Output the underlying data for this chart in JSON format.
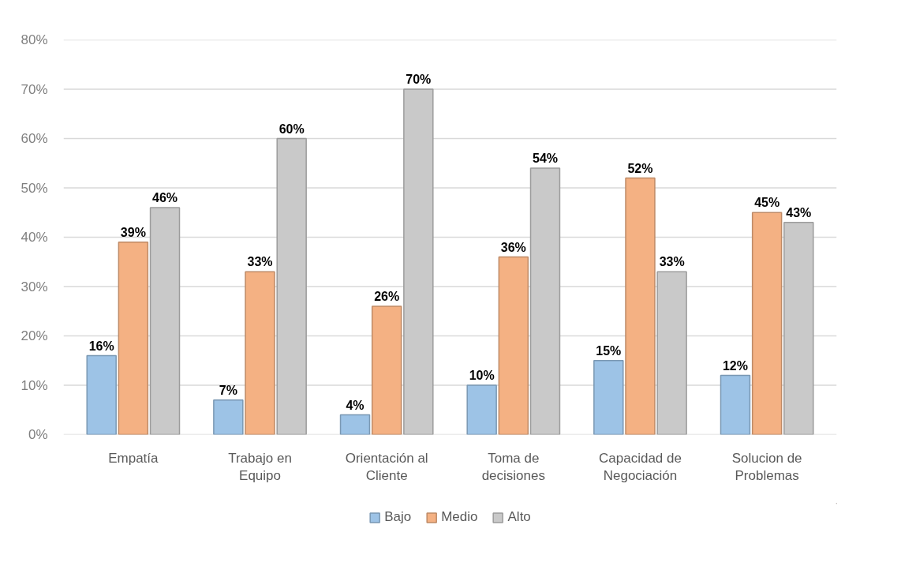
{
  "chart_data": {
    "type": "bar",
    "categories": [
      "Empatía",
      "Trabajo en Equipo",
      "Orientación al Cliente",
      "Toma de decisiones",
      "Capacidad de Negociación",
      "Solucion de Problemas"
    ],
    "series": [
      {
        "name": "Bajo",
        "color": "#9dc3e6",
        "values": [
          16,
          7,
          4,
          10,
          15,
          12
        ],
        "value_labels": [
          "16%",
          "7%",
          "4%",
          "10%",
          "15%",
          "12%"
        ]
      },
      {
        "name": "Medio",
        "color": "#f4b183",
        "values": [
          39,
          33,
          26,
          36,
          52,
          45
        ],
        "value_labels": [
          "39%",
          "33%",
          "26%",
          "36%",
          "52%",
          "45%"
        ]
      },
      {
        "name": "Alto",
        "color": "#c9c9c9",
        "values": [
          46,
          60,
          70,
          54,
          33,
          43
        ],
        "value_labels": [
          "46%",
          "60%",
          "70%",
          "54%",
          "33%",
          "43%"
        ]
      }
    ],
    "ylim": [
      0,
      80
    ],
    "yticks": [
      {
        "value": 0,
        "label": "0%"
      },
      {
        "value": 10,
        "label": "10%"
      },
      {
        "value": 20,
        "label": "20%"
      },
      {
        "value": 30,
        "label": "30%"
      },
      {
        "value": 40,
        "label": "40%"
      },
      {
        "value": 50,
        "label": "50%"
      },
      {
        "value": 60,
        "label": "60%"
      },
      {
        "value": 70,
        "label": "70%"
      },
      {
        "value": 80,
        "label": "80%"
      }
    ],
    "grid": "y",
    "legend": "bottom"
  }
}
